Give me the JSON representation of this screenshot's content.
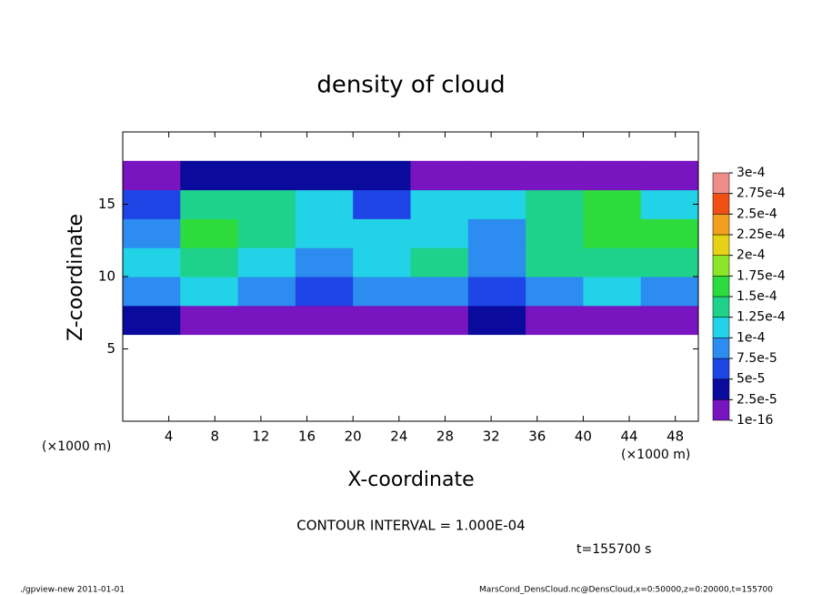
{
  "chart_data": {
    "type": "heatmap",
    "title": "density of cloud",
    "x_label": "X-coordinate",
    "y_label": "Z-coordinate",
    "x_unit": "(×1000 m)",
    "y_unit": "(×1000 m)",
    "xlim": [
      0,
      50
    ],
    "xticks": [
      4,
      8,
      12,
      16,
      20,
      24,
      28,
      32,
      36,
      40,
      44,
      48
    ],
    "ylim": [
      0,
      20
    ],
    "yticks": [
      5,
      10,
      15
    ],
    "xbins": [
      0,
      5,
      10,
      15,
      20,
      25,
      30,
      35,
      40,
      45,
      50
    ],
    "ybins": [
      0,
      2,
      4,
      6,
      8,
      10,
      12,
      14,
      16,
      18,
      20
    ],
    "values": [
      [
        null,
        null,
        null,
        null,
        null,
        null,
        null,
        null,
        null,
        null
      ],
      [
        null,
        null,
        null,
        null,
        null,
        null,
        null,
        null,
        null,
        null
      ],
      [
        null,
        null,
        null,
        null,
        null,
        null,
        null,
        null,
        null,
        null
      ],
      [
        3e-05,
        2e-05,
        2e-05,
        2e-05,
        2e-05,
        2e-05,
        3e-05,
        2e-05,
        2e-05,
        2e-05
      ],
      [
        9e-05,
        0.0001,
        8e-05,
        7e-05,
        8e-05,
        8e-05,
        6e-05,
        9e-05,
        0.0001,
        9e-05
      ],
      [
        0.00012,
        0.00014,
        0.00011,
        9e-05,
        0.00012,
        0.00013,
        8e-05,
        0.00014,
        0.00014,
        0.00013
      ],
      [
        9e-05,
        0.00015,
        0.00014,
        0.0001,
        0.00012,
        0.00011,
        9e-05,
        0.00014,
        0.00015,
        0.00016
      ],
      [
        6e-05,
        0.00013,
        0.00014,
        0.00012,
        7e-05,
        0.00011,
        0.00012,
        0.00013,
        0.00015,
        0.00012
      ],
      [
        2e-05,
        4e-05,
        3e-05,
        3e-05,
        3e-05,
        2e-05,
        2e-05,
        1e-05,
        1e-05,
        2e-05
      ],
      [
        null,
        null,
        null,
        null,
        null,
        null,
        null,
        null,
        null,
        null
      ]
    ],
    "levels": [
      {
        "value": 1e-16,
        "label": "1e-16"
      },
      {
        "value": 2.5e-05,
        "label": "2.5e-5"
      },
      {
        "value": 5e-05,
        "label": "5e-5"
      },
      {
        "value": 7.5e-05,
        "label": "7.5e-5"
      },
      {
        "value": 0.0001,
        "label": "1e-4"
      },
      {
        "value": 0.000125,
        "label": "1.25e-4"
      },
      {
        "value": 0.00015,
        "label": "1.5e-4"
      },
      {
        "value": 0.000175,
        "label": "1.75e-4"
      },
      {
        "value": 0.0002,
        "label": "2e-4"
      },
      {
        "value": 0.000225,
        "label": "2.25e-4"
      },
      {
        "value": 0.00025,
        "label": "2.5e-4"
      },
      {
        "value": 0.000275,
        "label": "2.75e-4"
      },
      {
        "value": 0.0003,
        "label": "3e-4"
      }
    ],
    "colors": [
      "#7814c0",
      "#0a0a9c",
      "#1e46e6",
      "#2d8cf0",
      "#22d2e6",
      "#1ed28c",
      "#2ddc3c",
      "#8ce628",
      "#e6d214",
      "#f0a01e",
      "#f05014",
      "#f08c8c"
    ],
    "contour_interval": "CONTOUR INTERVAL = 1.000E-04",
    "time": "t=155700 s",
    "footer_left": "./gpview-new   2011-01-01",
    "footer_right": "MarsCond_DensCloud.nc@DensCloud,x=0:50000,z=0:20000,t=155700"
  }
}
